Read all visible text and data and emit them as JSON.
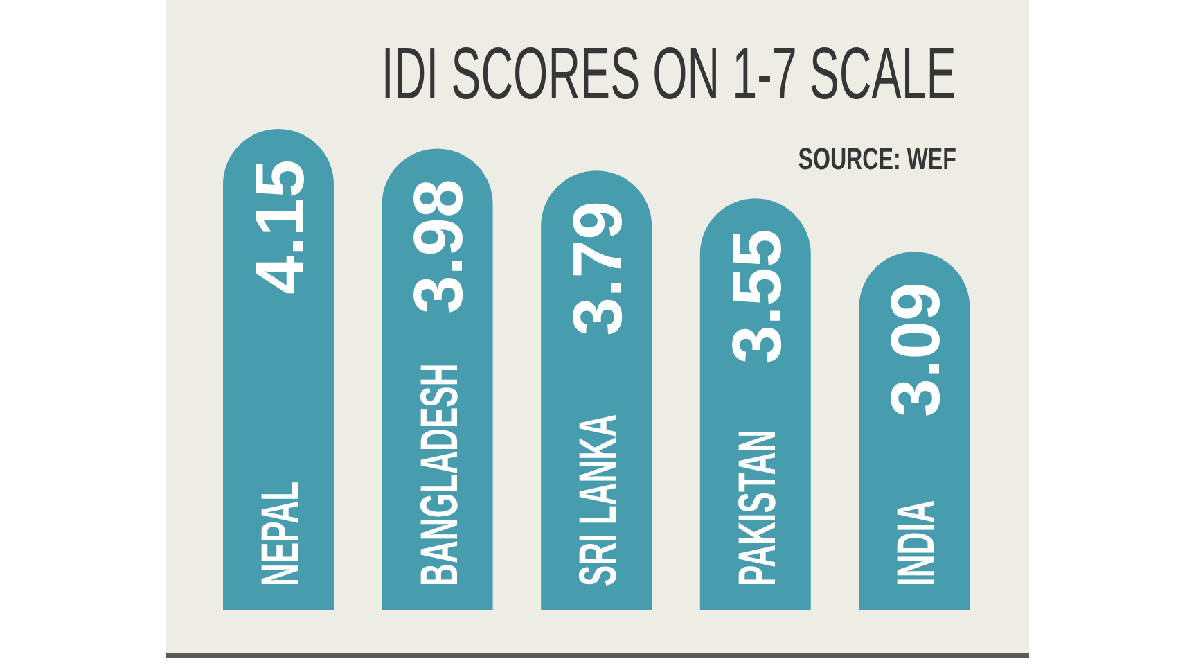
{
  "chart_data": {
    "type": "bar",
    "title": "IDI SCORES ON 1-7 SCALE",
    "annotations": [
      "SOURCE: WEF"
    ],
    "categories": [
      "NEPAL",
      "BANGLADESH",
      "SRI LANKA",
      "PAKISTAN",
      "INDIA"
    ],
    "values": [
      4.15,
      3.98,
      3.79,
      3.55,
      3.09
    ],
    "color": "#479cae",
    "data_labels": true,
    "tick_labels": "x"
  }
}
